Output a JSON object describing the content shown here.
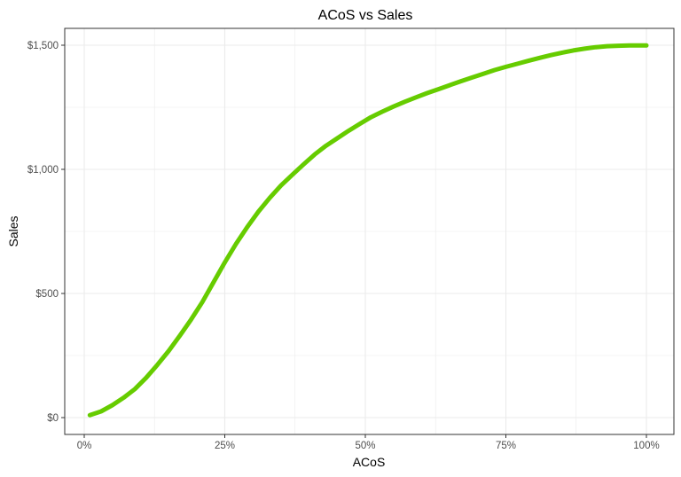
{
  "chart_data": {
    "type": "line",
    "title": "ACoS vs Sales",
    "xlabel": "ACoS",
    "ylabel": "Sales",
    "xlim": [
      0.01,
      1.0
    ],
    "ylim": [
      0,
      1500
    ],
    "x_ticks": [
      0,
      0.25,
      0.5,
      0.75,
      1.0
    ],
    "x_tick_labels": [
      "0%",
      "25%",
      "50%",
      "75%",
      "100%"
    ],
    "y_ticks": [
      0,
      500,
      1000,
      1500
    ],
    "y_tick_labels": [
      "$0",
      "$500",
      "$1,000",
      "$1,500"
    ],
    "grid": true,
    "legend": "none",
    "series": [
      {
        "color": "#66cc00",
        "x": [
          0.01,
          0.03,
          0.05,
          0.07,
          0.09,
          0.11,
          0.13,
          0.15,
          0.17,
          0.19,
          0.21,
          0.23,
          0.25,
          0.27,
          0.29,
          0.31,
          0.33,
          0.35,
          0.37,
          0.39,
          0.41,
          0.43,
          0.45,
          0.47,
          0.49,
          0.51,
          0.53,
          0.55,
          0.57,
          0.59,
          0.61,
          0.63,
          0.65,
          0.67,
          0.69,
          0.71,
          0.73,
          0.75,
          0.77,
          0.79,
          0.81,
          0.83,
          0.85,
          0.87,
          0.89,
          0.91,
          0.93,
          0.95,
          0.97,
          0.99,
          1.0
        ],
        "y": [
          10,
          25,
          50,
          80,
          115,
          160,
          212,
          268,
          330,
          395,
          465,
          545,
          625,
          700,
          768,
          830,
          885,
          935,
          978,
          1020,
          1060,
          1095,
          1125,
          1155,
          1183,
          1210,
          1232,
          1253,
          1272,
          1290,
          1307,
          1323,
          1339,
          1355,
          1370,
          1385,
          1400,
          1413,
          1425,
          1437,
          1449,
          1460,
          1470,
          1479,
          1486,
          1492,
          1496,
          1498,
          1499,
          1499,
          1499
        ]
      }
    ]
  }
}
